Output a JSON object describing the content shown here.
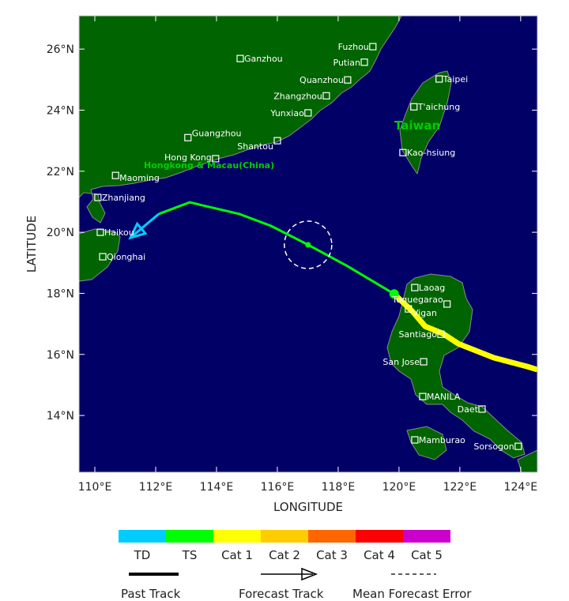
{
  "map": {
    "xlabel": "LONGITUDE",
    "ylabel": "LATITUDE",
    "lon_range": [
      109.48,
      124.55
    ],
    "lat_range": [
      12.14,
      27.09
    ],
    "lon_ticks": [
      110,
      112,
      114,
      116,
      118,
      120,
      122,
      124
    ],
    "lat_ticks": [
      14,
      16,
      18,
      20,
      22,
      24,
      26
    ],
    "colors": {
      "ocean": "#000066",
      "land": "#006400",
      "coast": "#8a8a8a"
    },
    "region_labels": [
      {
        "text": "Hongkong & Macau(China)",
        "color": "#00cc00"
      },
      {
        "text": "Taiwan",
        "color": "#00cc00"
      }
    ],
    "cities": [
      {
        "name": "Fuzhou",
        "lon": 119.14,
        "lat": 26.08
      },
      {
        "name": "Putian",
        "lon": 118.86,
        "lat": 25.57
      },
      {
        "name": "Quanzhou",
        "lon": 118.31,
        "lat": 24.99
      },
      {
        "name": "Zhangzhou",
        "lon": 117.61,
        "lat": 24.47
      },
      {
        "name": "Yunxiao",
        "lon": 117.01,
        "lat": 23.91
      },
      {
        "name": "Ganzhou",
        "lon": 114.78,
        "lat": 25.69
      },
      {
        "name": "Guangzhou",
        "lon": 113.06,
        "lat": 23.1
      },
      {
        "name": "Shantou",
        "lon": 116.0,
        "lat": 23.0
      },
      {
        "name": "Hong Kong",
        "lon": 113.97,
        "lat": 22.41
      },
      {
        "name": "Maoming",
        "lon": 110.68,
        "lat": 21.86
      },
      {
        "name": "Zhanjiang",
        "lon": 110.1,
        "lat": 21.14
      },
      {
        "name": "Haikou",
        "lon": 110.18,
        "lat": 20.0
      },
      {
        "name": "Qionghai",
        "lon": 110.26,
        "lat": 19.2
      },
      {
        "name": "Taipei",
        "lon": 121.32,
        "lat": 25.02
      },
      {
        "name": "T'aichung",
        "lon": 120.49,
        "lat": 24.11
      },
      {
        "name": "Kao-hsiung",
        "lon": 120.13,
        "lat": 22.61
      },
      {
        "name": "Laoag",
        "lon": 120.52,
        "lat": 18.19
      },
      {
        "name": "Tuguegarao",
        "lon": 121.58,
        "lat": 17.65
      },
      {
        "name": "Vigan",
        "lon": 120.31,
        "lat": 17.49
      },
      {
        "name": "Santiago",
        "lon": 121.38,
        "lat": 16.66
      },
      {
        "name": "San Jose",
        "lon": 120.81,
        "lat": 15.76
      },
      {
        "name": "MANILA",
        "lon": 120.78,
        "lat": 14.62
      },
      {
        "name": "Daet",
        "lon": 122.73,
        "lat": 14.21
      },
      {
        "name": "Mamburao",
        "lon": 120.52,
        "lat": 13.2
      },
      {
        "name": "Sorsogon",
        "lon": 123.92,
        "lat": 12.99
      }
    ],
    "track": {
      "past_cat1": [
        [
          124.55,
          15.5
        ],
        [
          124.23,
          15.6
        ],
        [
          123.12,
          15.89
        ],
        [
          121.95,
          16.35
        ],
        [
          121.43,
          16.69
        ],
        [
          120.86,
          16.92
        ],
        [
          120.44,
          17.41
        ],
        [
          119.84,
          17.98
        ]
      ],
      "forecast_ts": [
        [
          119.84,
          17.98
        ],
        [
          118.31,
          18.89
        ],
        [
          117.01,
          19.59
        ],
        [
          115.79,
          20.21
        ],
        [
          114.75,
          20.6
        ],
        [
          113.12,
          20.98
        ],
        [
          112.1,
          20.6
        ]
      ],
      "forecast_td": [
        [
          112.1,
          20.6
        ],
        [
          111.17,
          19.82
        ]
      ],
      "current_position": [
        119.84,
        17.98
      ],
      "error_circle": {
        "center": [
          117.01,
          19.59
        ],
        "radius_deg": 0.78
      }
    }
  },
  "legend": {
    "categories": [
      {
        "label": "TD",
        "color": "#00ccff"
      },
      {
        "label": "TS",
        "color": "#00ff00"
      },
      {
        "label": "Cat 1",
        "color": "#ffff00"
      },
      {
        "label": "Cat 2",
        "color": "#ffcc00"
      },
      {
        "label": "Cat 3",
        "color": "#ff6600"
      },
      {
        "label": "Cat 4",
        "color": "#ff0000"
      },
      {
        "label": "Cat 5",
        "color": "#cc00cc"
      }
    ],
    "past_track": "Past Track",
    "forecast_track": "Forecast Track",
    "mean_error": "Mean Forecast Error"
  }
}
